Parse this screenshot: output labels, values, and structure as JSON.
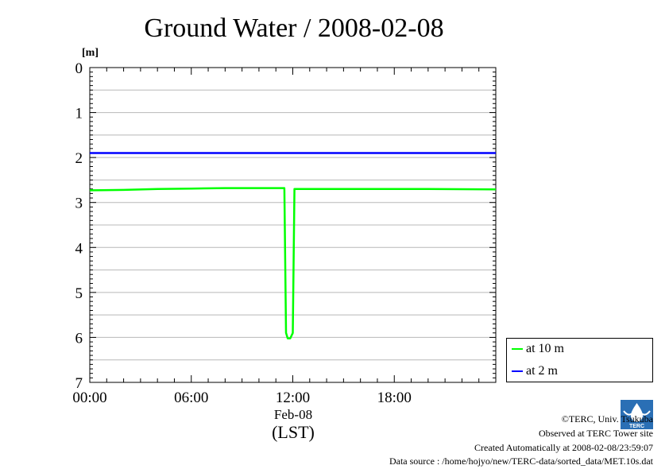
{
  "chart_data": {
    "type": "line",
    "title": "Ground Water / 2008-02-08",
    "ylabel": "[m]",
    "xlabel": "(LST)",
    "x_date_label": "Feb-08",
    "x_unit": "hour",
    "xlim": [
      0,
      24
    ],
    "ylim": [
      0,
      7
    ],
    "y_inverted": true,
    "y_ticks": [
      "0",
      "1",
      "2",
      "3",
      "4",
      "5",
      "6",
      "7"
    ],
    "x_ticks": [
      {
        "value": 0,
        "label": "00:00"
      },
      {
        "value": 6,
        "label": "06:00"
      },
      {
        "value": 12,
        "label": "12:00"
      },
      {
        "value": 18,
        "label": "18:00"
      }
    ],
    "grid": true,
    "legend_position": "bottom-right-outside",
    "series": [
      {
        "name": "at 10 m",
        "color": "#00ff00",
        "x": [
          0,
          2,
          4,
          6,
          8,
          10,
          11.5,
          11.6,
          11.7,
          11.85,
          12.0,
          12.1,
          20,
          24
        ],
        "values": [
          2.73,
          2.72,
          2.7,
          2.69,
          2.68,
          2.68,
          2.68,
          5.9,
          6.02,
          6.02,
          5.9,
          2.7,
          2.7,
          2.71
        ]
      },
      {
        "name": "at 2 m",
        "color": "#0000ff",
        "x": [
          0,
          24
        ],
        "values": [
          1.9,
          1.9
        ]
      }
    ]
  },
  "footer": {
    "copyright": "©TERC, Univ. Tsukuba",
    "observed": "Observed at TERC Tower site",
    "created": "Created Automatically at 2008-02-08/23:59:07",
    "source": "Data source : /home/hojyo/new/TERC-data/sorted_data/MET.10s.dat"
  },
  "logo_text": "TERC"
}
